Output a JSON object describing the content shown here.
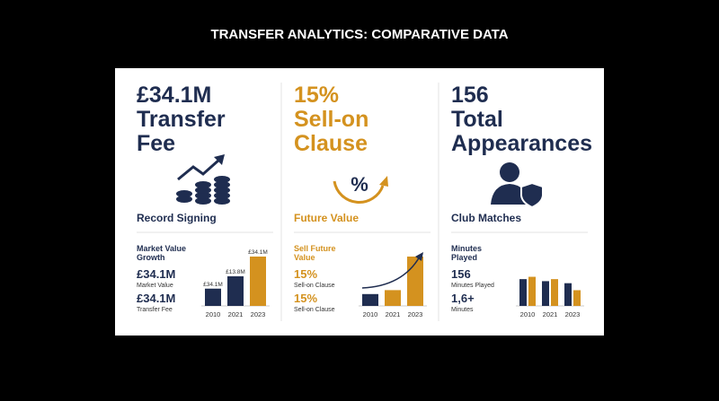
{
  "header": {
    "title": "TRANSFER ANALYTICS: COMPARATIVE DATA"
  },
  "panels": [
    {
      "color": "#1f2d50",
      "headline": [
        "£34.1M",
        "Transfer",
        "Fee"
      ],
      "caption": "Record Signing",
      "metric_title": [
        "Market Value",
        "Growth"
      ],
      "stats": [
        {
          "value": "£34.1M",
          "label": "Market Value"
        },
        {
          "value": "£34.1M",
          "label": "Transfer Fee"
        }
      ],
      "chart": {
        "type": "bar",
        "categories": [
          "2010",
          "2021",
          "2023"
        ],
        "values": [
          35,
          60,
          100
        ],
        "colors": [
          "#1f2d50",
          "#1f2d50",
          "#d4921f"
        ],
        "bar_labels": [
          "£34.1M",
          "£13.8M",
          "£34.1M"
        ]
      }
    },
    {
      "color": "#d4921f",
      "headline": [
        "15%",
        "Sell-on",
        "Clause"
      ],
      "caption": "Future Value",
      "metric_title": [
        "Sell Future",
        "Value"
      ],
      "stats": [
        {
          "value": "15%",
          "label": "Sell-on Clause"
        },
        {
          "value": "15%",
          "label": "Sell-on Clause"
        }
      ],
      "chart": {
        "type": "bar",
        "categories": [
          "2010",
          "2021",
          "2023"
        ],
        "values": [
          24,
          32,
          100
        ],
        "colors": [
          "#1f2d50",
          "#d4921f",
          "#d4921f"
        ],
        "trend": true
      }
    },
    {
      "color": "#1f2d50",
      "headline": [
        "156",
        "Total",
        "Appearances"
      ],
      "caption": "Club Matches",
      "metric_title": [
        "Minutes",
        "Played"
      ],
      "stats": [
        {
          "value": "156",
          "label": "Minutes Played"
        },
        {
          "value": "1,6+",
          "label": "Minutes"
        }
      ],
      "chart": {
        "type": "grouped-bar",
        "categories": [
          "2010",
          "2021",
          "2023"
        ],
        "series": [
          {
            "color": "#1f2d50",
            "values": [
              92,
              85,
              78
            ]
          },
          {
            "color": "#d4921f",
            "values": [
              100,
              92,
              54
            ]
          }
        ]
      }
    }
  ]
}
